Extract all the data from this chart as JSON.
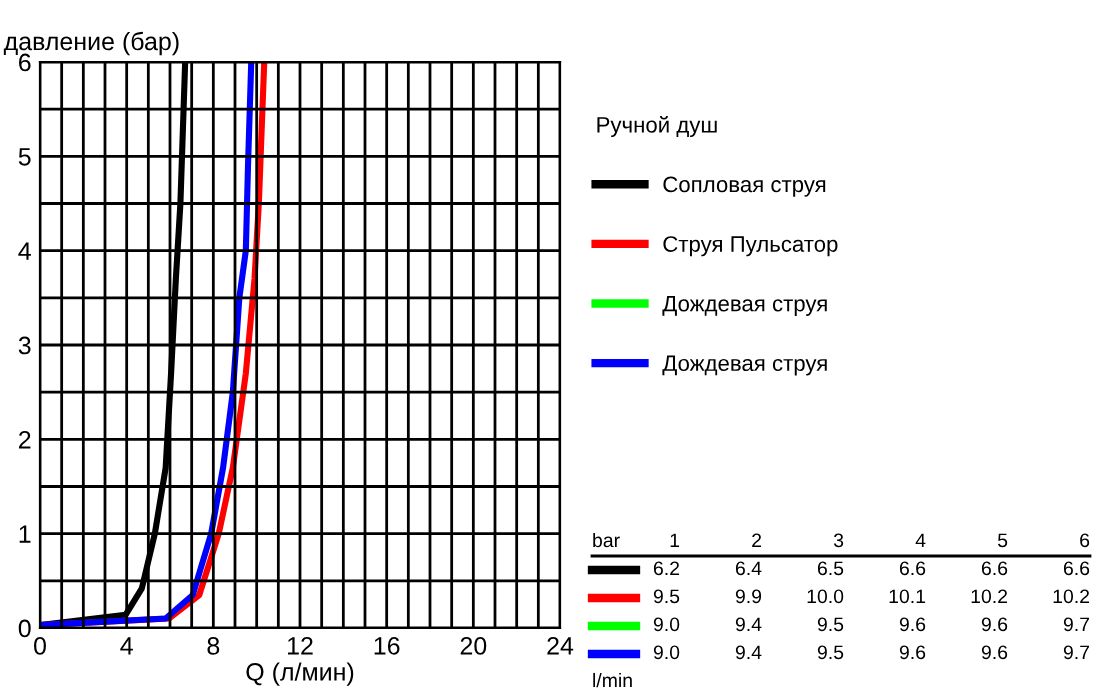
{
  "chart_data": {
    "type": "line",
    "xlabel": "Q (л/мин)",
    "ylabel": "давление (бар)",
    "legend_title": "Ручной душ",
    "legend": "right",
    "grid": true,
    "marker": "none",
    "line_style": "solid",
    "xlim": [
      0,
      24
    ],
    "ylim": [
      0,
      6
    ],
    "xticks": [
      0,
      {
        "value": 1,
        "label": null
      },
      {
        "value": 2,
        "label": null
      },
      {
        "value": 3,
        "label": null
      },
      4,
      {
        "value": 5,
        "label": null
      },
      {
        "value": 6,
        "label": null
      },
      {
        "value": 7,
        "label": null
      },
      8,
      {
        "value": 9,
        "label": null
      },
      {
        "value": 10,
        "label": null
      },
      {
        "value": 11,
        "label": null
      },
      12,
      {
        "value": 13,
        "label": null
      },
      {
        "value": 14,
        "label": null
      },
      {
        "value": 15,
        "label": null
      },
      16,
      {
        "value": 17,
        "label": null
      },
      {
        "value": 18,
        "label": null
      },
      {
        "value": 19,
        "label": null
      },
      20,
      {
        "value": 21,
        "label": null
      },
      {
        "value": 22,
        "label": null
      },
      {
        "value": 23,
        "label": null
      },
      24
    ],
    "yticks": [
      0,
      {
        "value": 0.5,
        "label": null
      },
      1,
      {
        "value": 1.5,
        "label": null
      },
      2,
      {
        "value": 2.5,
        "label": null
      },
      3,
      {
        "value": 3.5,
        "label": null
      },
      4,
      {
        "value": 4.5,
        "label": null
      },
      5,
      {
        "value": 5.5,
        "label": null
      },
      6
    ],
    "series": [
      {
        "name": "Сопловая струя",
        "color": "#000000",
        "x": [
          0,
          3.95,
          4.7,
          5.3,
          5.8,
          6.05,
          6.27,
          6.48,
          6.7
        ],
        "values": [
          0.03,
          0.14,
          0.42,
          1.0,
          1.7,
          2.7,
          3.7,
          4.5,
          6.0
        ]
      },
      {
        "name": "Струя Пульсатор",
        "color": "#ff0000",
        "x": [
          0,
          5.95,
          7.35,
          8.25,
          8.9,
          9.5,
          9.9,
          10.1,
          10.35
        ],
        "values": [
          0.03,
          0.1,
          0.35,
          1.0,
          1.7,
          2.7,
          3.7,
          4.5,
          6.0
        ]
      },
      {
        "name": "Дождевая струя",
        "color": "#00ff00"
      },
      {
        "name": "Дождевая струя",
        "color": "#0000ff",
        "x": [
          0,
          5.8,
          7.05,
          7.9,
          8.45,
          8.9,
          9.2,
          9.5,
          9.6,
          9.75
        ],
        "values": [
          0.03,
          0.1,
          0.35,
          1.0,
          1.7,
          2.5,
          3.5,
          4.0,
          4.9,
          6.0
        ]
      }
    ],
    "annotations": [
      "bar",
      "1",
      "2",
      "3",
      "4",
      "5",
      "6",
      "6.2",
      "6.4",
      "6.5",
      "6.6",
      "6.6",
      "6.6",
      "9.5",
      "9.9",
      "10.0",
      "10.1",
      "10.2",
      "10.2",
      "9.0",
      "9.4",
      "9.5",
      "9.6",
      "9.6",
      "9.7",
      "9.0",
      "9.4",
      "9.5",
      "9.6",
      "9.6",
      "9.7",
      "l/min"
    ]
  }
}
